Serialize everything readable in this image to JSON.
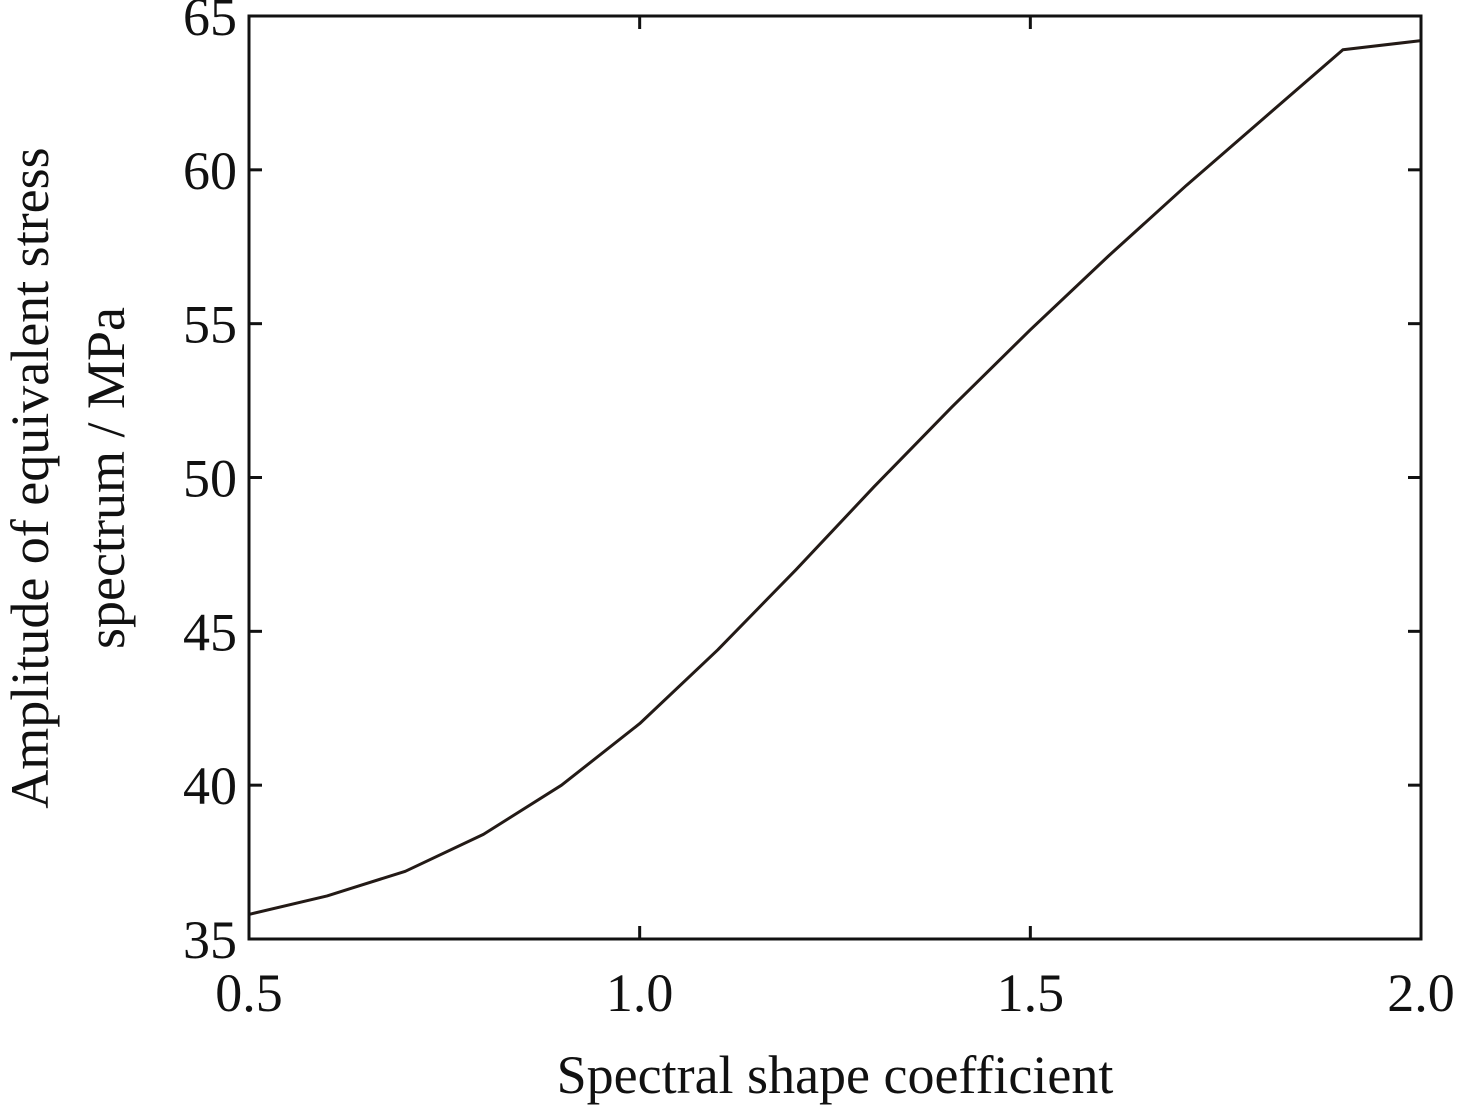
{
  "chart_data": {
    "type": "line",
    "title": "",
    "xlabel": "Spectral shape coefficient",
    "ylabel_line1": "Amplitude of equivalent stress",
    "ylabel_line2": "spectrum / MPa",
    "xlim": [
      0.5,
      2.0
    ],
    "ylim": [
      35,
      65
    ],
    "xticks": [
      0.5,
      1.0,
      1.5,
      2.0
    ],
    "xtick_labels": [
      "0.5",
      "1.0",
      "1.5",
      "2.0"
    ],
    "yticks": [
      35,
      40,
      45,
      50,
      55,
      60,
      65
    ],
    "ytick_labels": [
      "35",
      "40",
      "45",
      "50",
      "55",
      "60",
      "65"
    ],
    "grid": false,
    "legend": "none",
    "line_color": "#231a16",
    "series": [
      {
        "x": [
          0.5,
          0.6,
          0.7,
          0.8,
          0.9,
          1.0,
          1.1,
          1.2,
          1.3,
          1.4,
          1.5,
          1.6,
          1.7,
          1.8,
          1.9,
          2.0
        ],
        "y": [
          35.8,
          36.4,
          37.2,
          38.4,
          40.0,
          42.0,
          44.4,
          47.0,
          49.7,
          52.3,
          54.8,
          57.2,
          59.5,
          61.7,
          63.9,
          64.2
        ]
      }
    ]
  }
}
